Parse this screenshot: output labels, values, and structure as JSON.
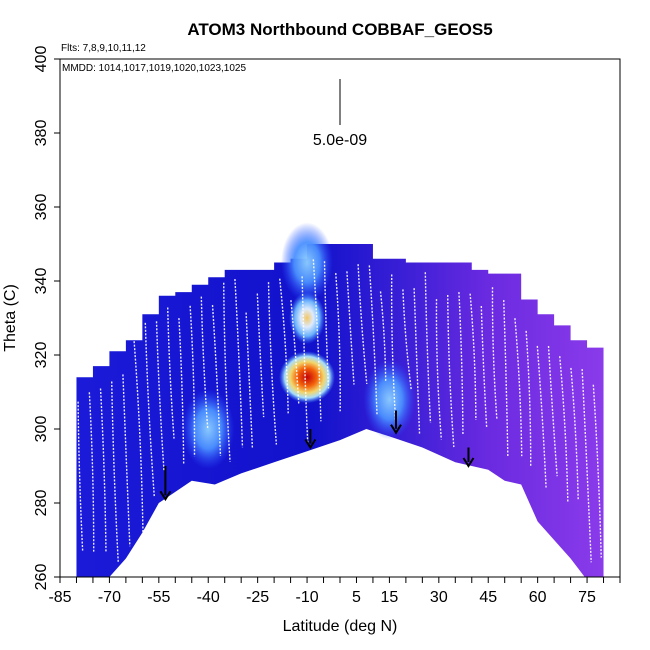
{
  "chart_data": {
    "type": "heatmap",
    "title": "ATOM3 Northbound COBBAF_GEOS5",
    "subtitle_flights": "Flts: 7,8,9,10,11,12",
    "annotation_mmdd": "MMDD: 1014,1017,1019,1020,1023,1025",
    "scale_label": "5.0e-09",
    "xlabel": "Latitude (deg N)",
    "ylabel": "Theta (C)",
    "xlim": [
      -85,
      85
    ],
    "ylim": [
      260,
      400
    ],
    "x_ticks": [
      -85,
      -70,
      -55,
      -40,
      -25,
      -10,
      5,
      15,
      30,
      45,
      60,
      75
    ],
    "x_ticks_labels": [
      "-85",
      "-70",
      "-55",
      "-40",
      "-25",
      "-10",
      "5",
      "15",
      "30",
      "45",
      "60",
      "75"
    ],
    "y_ticks": [
      260,
      280,
      300,
      320,
      340,
      360,
      380,
      400
    ],
    "y_ticks_labels": [
      "260",
      "280",
      "300",
      "320",
      "340",
      "360",
      "380",
      "400"
    ],
    "curtain_top_profile": [
      [
        -80,
        314
      ],
      [
        -75,
        317
      ],
      [
        -70,
        321
      ],
      [
        -65,
        324
      ],
      [
        -60,
        331
      ],
      [
        -55,
        336
      ],
      [
        -50,
        337
      ],
      [
        -45,
        339
      ],
      [
        -40,
        341
      ],
      [
        -35,
        343
      ],
      [
        -25,
        343
      ],
      [
        -20,
        345
      ],
      [
        -15,
        346
      ],
      [
        -10,
        350
      ],
      [
        0,
        350
      ],
      [
        10,
        346
      ],
      [
        20,
        345
      ],
      [
        30,
        345
      ],
      [
        40,
        343
      ],
      [
        45,
        342
      ],
      [
        55,
        335
      ],
      [
        60,
        331
      ],
      [
        65,
        328
      ],
      [
        70,
        324
      ],
      [
        75,
        322
      ],
      [
        80,
        318
      ]
    ],
    "curtain_bottom_profile": [
      [
        -80,
        257
      ],
      [
        -75,
        258
      ],
      [
        -70,
        260
      ],
      [
        -65,
        265
      ],
      [
        -60,
        272
      ],
      [
        -55,
        280
      ],
      [
        -45,
        286
      ],
      [
        -38,
        285
      ],
      [
        -30,
        288
      ],
      [
        -20,
        291
      ],
      [
        -10,
        294
      ],
      [
        0,
        297
      ],
      [
        8,
        300
      ],
      [
        15,
        298
      ],
      [
        25,
        295
      ],
      [
        35,
        291
      ],
      [
        45,
        289
      ],
      [
        50,
        286
      ],
      [
        55,
        285
      ],
      [
        60,
        275
      ],
      [
        65,
        270
      ],
      [
        70,
        265
      ],
      [
        76,
        258
      ],
      [
        80,
        257
      ]
    ],
    "hotspots": [
      {
        "lat": -10,
        "theta": 314,
        "level": "max"
      },
      {
        "lat": -10,
        "theta": 330,
        "level": "medium"
      },
      {
        "lat": -10,
        "theta": 345,
        "level": "low"
      },
      {
        "lat": -40,
        "theta": 300,
        "level": "low"
      },
      {
        "lat": 15,
        "theta": 308,
        "level": "low"
      }
    ],
    "arrows_lat": [
      -53,
      -9,
      17,
      39
    ],
    "arrow_theta_top": [
      290,
      300,
      305,
      295
    ],
    "arrow_theta_bottom": [
      281,
      295,
      299,
      290
    ]
  }
}
